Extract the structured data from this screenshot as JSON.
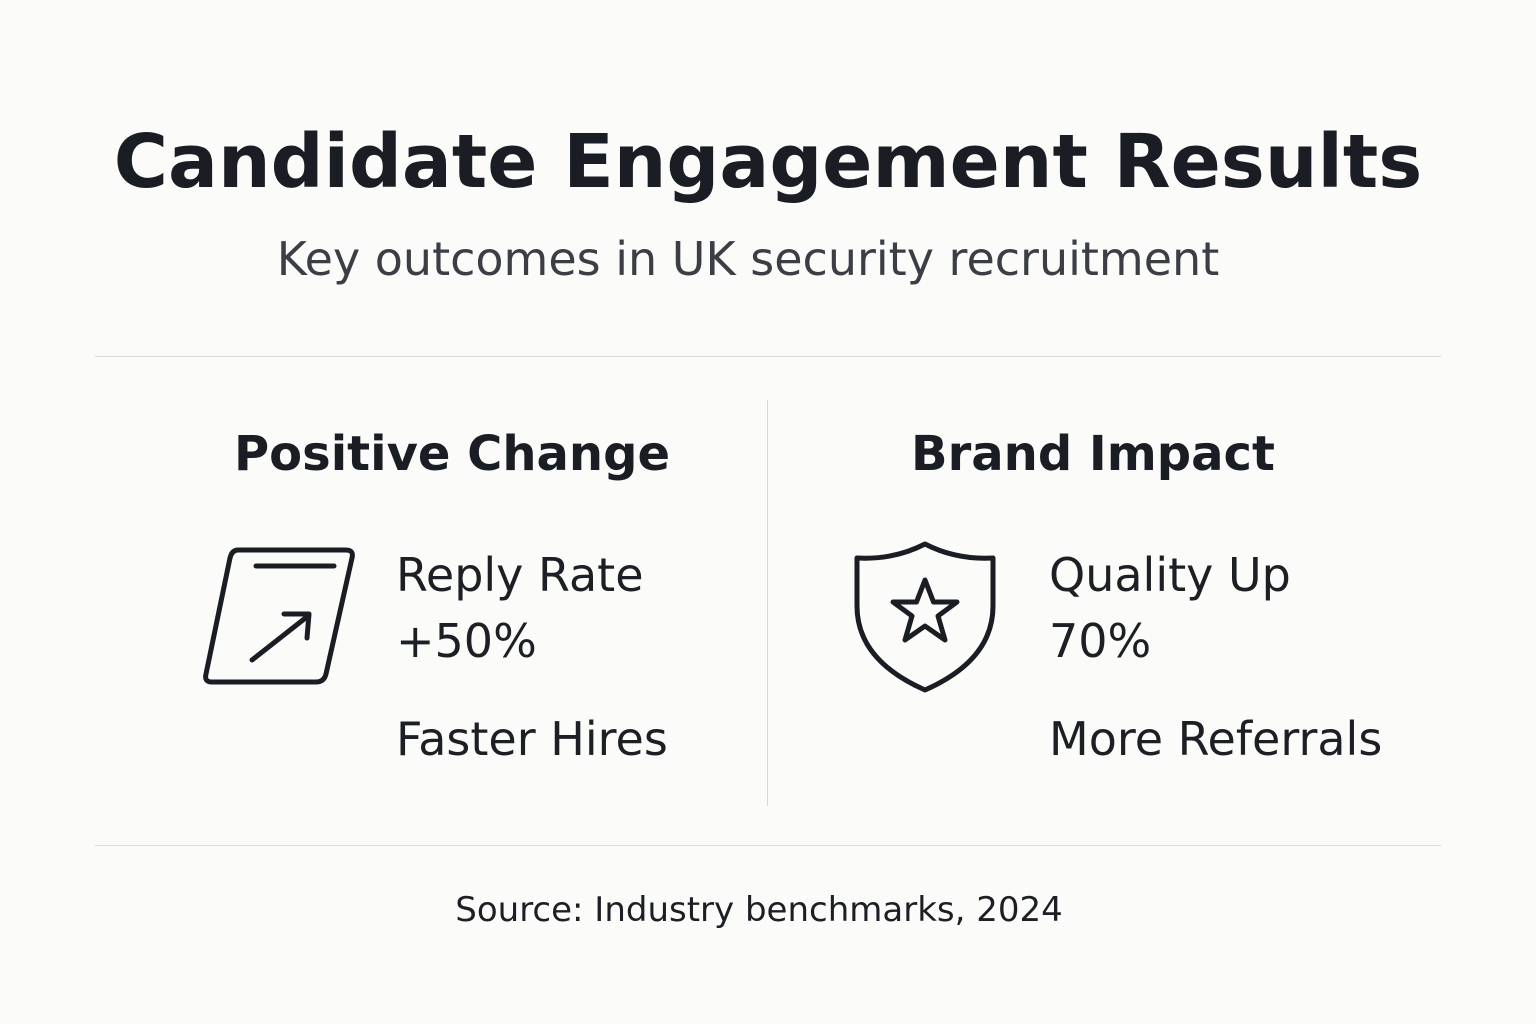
{
  "header": {
    "title": "Candidate Engagement Results",
    "subtitle": "Key outcomes in UK security recruitment"
  },
  "panels": [
    {
      "heading": "Positive Change",
      "icon": "trend-up-arrow-icon",
      "metric_label": "Reply Rate",
      "metric_value": "+50%",
      "extra": "Faster Hires"
    },
    {
      "heading": "Brand Impact",
      "icon": "shield-star-icon",
      "metric_label": "Quality Up",
      "metric_value": "70%",
      "extra": "More Referrals"
    }
  ],
  "footer": {
    "source": "Source: Industry benchmarks, 2024"
  },
  "colors": {
    "background": "#fbfbfa",
    "text": "#1a1d23",
    "divider": "#dcdcdc"
  }
}
